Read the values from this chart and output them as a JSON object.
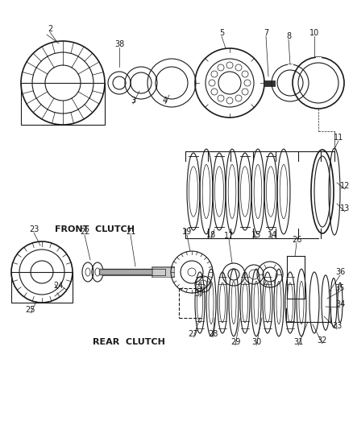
{
  "bg_color": "#ffffff",
  "line_color": "#1a1a1a",
  "front_clutch_label": "FRONT  CLUTCH",
  "rear_clutch_label": "REAR  CLUTCH",
  "figsize": [
    4.38,
    5.33
  ],
  "dpi": 100,
  "xlim": [
    0,
    438
  ],
  "ylim": [
    0,
    533
  ]
}
